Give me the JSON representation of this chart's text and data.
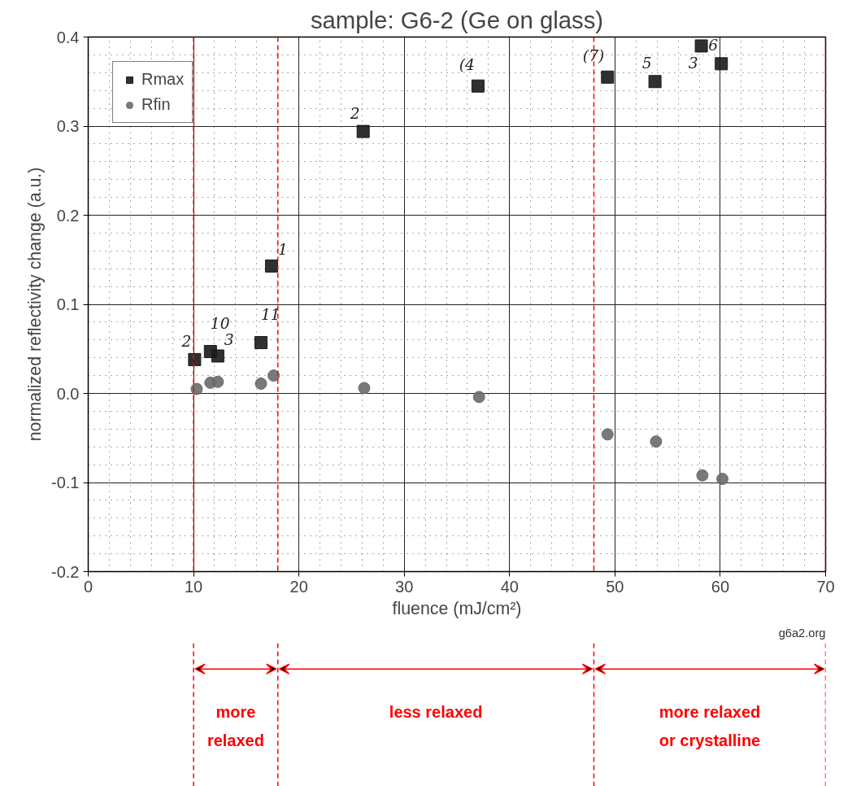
{
  "chart_data": {
    "type": "scatter",
    "title": "sample: G6-2 (Ge on glass)",
    "xlabel": "fluence (mJ/cm²)",
    "ylabel": "normalized reflectivity change (a.u.)",
    "xlim": [
      0,
      70
    ],
    "ylim": [
      -0.2,
      0.4
    ],
    "xticks": [
      0,
      10,
      20,
      30,
      40,
      50,
      60,
      70
    ],
    "yticks": [
      {
        "value": -0.2,
        "label": "-0.2"
      },
      {
        "value": -0.1,
        "label": "-0.1"
      },
      {
        "value": 0,
        "label": "0.0"
      },
      0.1,
      0.2,
      0.3,
      0.4
    ],
    "grid": true,
    "legend": "top left",
    "series": [
      {
        "name": "Rmax",
        "color": "#1a1a1a",
        "marker": "square",
        "x": [
          10.1,
          11.6,
          12.3,
          16.4,
          17.4,
          26.1,
          37.0,
          49.3,
          53.8,
          58.2,
          60.1
        ],
        "values": [
          0.038,
          0.047,
          0.042,
          0.057,
          0.143,
          0.294,
          0.345,
          0.355,
          0.35,
          0.39,
          0.37
        ]
      },
      {
        "name": "Rfin",
        "color": "#6a6a6a",
        "marker": "circle",
        "x": [
          10.3,
          11.6,
          12.3,
          16.4,
          17.6,
          26.2,
          37.1,
          49.3,
          53.9,
          58.3,
          60.2
        ],
        "values": [
          0.005,
          0.012,
          0.013,
          0.011,
          0.02,
          0.006,
          -0.004,
          -0.046,
          -0.054,
          -0.092,
          -0.096
        ]
      }
    ],
    "ref_lines": [
      {
        "axis": "x",
        "value": 10,
        "label": null,
        "color": "#ff0000",
        "line_style": "dashed"
      },
      {
        "axis": "x",
        "value": 18,
        "label": null,
        "color": "#ff0000",
        "line_style": "dashed"
      },
      {
        "axis": "x",
        "value": 48,
        "label": null,
        "color": "#ff0000",
        "line_style": "dashed"
      },
      {
        "axis": "x",
        "value": 70,
        "label": null,
        "color": "#ff0000",
        "line_style": "dashed"
      }
    ],
    "annotations": [
      {
        "text": "2",
        "x": 10.1,
        "y": 0.038
      },
      {
        "text": "10",
        "x": 11.6,
        "y": 0.047
      },
      {
        "text": "3",
        "x": 12.3,
        "y": 0.042
      },
      {
        "text": "11",
        "x": 16.4,
        "y": 0.057
      },
      {
        "text": "1",
        "x": 17.4,
        "y": 0.143
      },
      {
        "text": "2",
        "x": 26.1,
        "y": 0.294
      },
      {
        "text": "(4",
        "x": 37.0,
        "y": 0.345
      },
      {
        "text": "(7)",
        "x": 49.3,
        "y": 0.355
      },
      {
        "text": "5",
        "x": 53.8,
        "y": 0.35
      },
      {
        "text": "3",
        "x": 58.2,
        "y": 0.39
      },
      {
        "text": "6",
        "x": 60.1,
        "y": 0.37
      },
      "more\nrelaxed",
      "less relaxed",
      "more relaxed\nor crystalline",
      "g6a2.org"
    ]
  }
}
